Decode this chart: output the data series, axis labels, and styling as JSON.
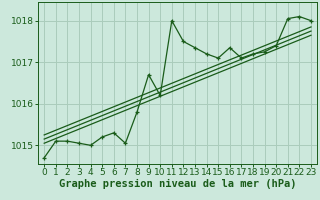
{
  "title": "Graphe pression niveau de la mer (hPa)",
  "bg_color": "#cce8dc",
  "line_color": "#1a5c1a",
  "grid_color": "#aaccbb",
  "xlim": [
    -0.5,
    23.5
  ],
  "ylim": [
    1014.55,
    1018.45
  ],
  "yticks": [
    1015,
    1016,
    1017,
    1018
  ],
  "xticks": [
    0,
    1,
    2,
    3,
    4,
    5,
    6,
    7,
    8,
    9,
    10,
    11,
    12,
    13,
    14,
    15,
    16,
    17,
    18,
    19,
    20,
    21,
    22,
    23
  ],
  "series1": [
    1014.7,
    1015.1,
    1015.1,
    1015.05,
    1015.0,
    1015.2,
    1015.3,
    1015.05,
    1015.8,
    1016.7,
    1016.2,
    1018.0,
    1017.5,
    1017.35,
    1017.2,
    1017.1,
    1017.35,
    1017.1,
    1017.2,
    1017.25,
    1017.4,
    1018.05,
    1018.1,
    1018.0
  ],
  "trend1_x": [
    0,
    23
  ],
  "trend1_y": [
    1015.15,
    1017.75
  ],
  "trend2_x": [
    0,
    23
  ],
  "trend2_y": [
    1015.25,
    1017.85
  ],
  "trend3_x": [
    0,
    23
  ],
  "trend3_y": [
    1015.05,
    1017.65
  ],
  "xlabel_fontsize": 7.5,
  "tick_fontsize": 6.5
}
